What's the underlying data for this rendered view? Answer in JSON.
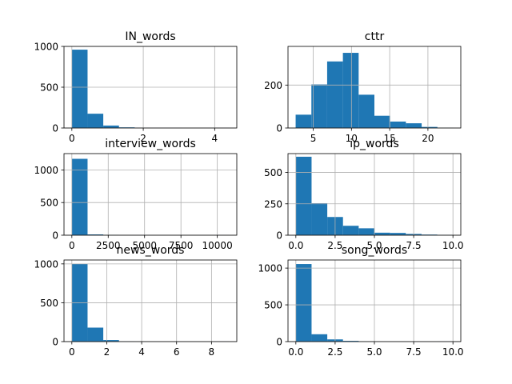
{
  "chart_data": [
    {
      "type": "bar",
      "title": "IN_words",
      "xlabel": "",
      "ylabel": "",
      "bar_color": "#1f77b4",
      "grid": true,
      "xlim": [
        -0.22,
        4.62
      ],
      "ylim": [
        0,
        1000
      ],
      "xticks": [
        0,
        2,
        4
      ],
      "xtick_labels": [
        "0",
        "2",
        "4"
      ],
      "yticks": [
        0,
        500,
        1000
      ],
      "ytick_labels": [
        "0",
        "500",
        "1000"
      ],
      "bin_edges": [
        0.0,
        0.44,
        0.88,
        1.32,
        1.76,
        2.2,
        2.64,
        3.08,
        3.52,
        3.96,
        4.4
      ],
      "values": [
        960,
        175,
        30,
        8,
        3,
        1,
        1,
        0,
        0,
        1
      ]
    },
    {
      "type": "bar",
      "title": "cttr",
      "xlabel": "",
      "ylabel": "",
      "bar_color": "#1f77b4",
      "grid": true,
      "xlim": [
        1.7,
        24.3
      ],
      "ylim": [
        0,
        380
      ],
      "xticks": [
        5,
        10,
        15,
        20
      ],
      "xtick_labels": [
        "5",
        "10",
        "15",
        "20"
      ],
      "yticks": [
        0,
        200
      ],
      "ytick_labels": [
        "0",
        "200"
      ],
      "bin_edges": [
        2.7,
        4.76,
        6.82,
        8.88,
        10.94,
        13.0,
        15.06,
        17.12,
        19.18,
        21.24,
        23.3
      ],
      "values": [
        62,
        203,
        310,
        350,
        155,
        57,
        30,
        22,
        5,
        1
      ]
    },
    {
      "type": "bar",
      "title": "interview_words",
      "xlabel": "",
      "ylabel": "",
      "bar_color": "#1f77b4",
      "grid": true,
      "xlim": [
        -540,
        11340
      ],
      "ylim": [
        0,
        1250
      ],
      "xticks": [
        0,
        2500,
        5000,
        7500,
        10000
      ],
      "xtick_labels": [
        "0",
        "2500",
        "5000",
        "7500",
        "10000"
      ],
      "yticks": [
        0,
        500,
        1000
      ],
      "ytick_labels": [
        "0",
        "500",
        "1000"
      ],
      "bin_edges": [
        0,
        1080,
        2160,
        3240,
        4320,
        5400,
        6480,
        7560,
        8640,
        9720,
        10800
      ],
      "values": [
        1170,
        12,
        6,
        2,
        1,
        0,
        0,
        0,
        0,
        1
      ]
    },
    {
      "type": "bar",
      "title": "ip_words",
      "xlabel": "",
      "ylabel": "",
      "bar_color": "#1f77b4",
      "grid": true,
      "xlim": [
        -0.5,
        10.5
      ],
      "ylim": [
        0,
        650
      ],
      "xticks": [
        0,
        2.5,
        5,
        7.5,
        10
      ],
      "xtick_labels": [
        "0.0",
        "2.5",
        "5.0",
        "7.5",
        "10.0"
      ],
      "yticks": [
        0,
        250,
        500
      ],
      "ytick_labels": [
        "0",
        "250",
        "500"
      ],
      "bin_edges": [
        0,
        1,
        2,
        3,
        4,
        5,
        6,
        7,
        8,
        9,
        10
      ],
      "values": [
        625,
        255,
        145,
        75,
        55,
        20,
        18,
        10,
        5,
        3
      ]
    },
    {
      "type": "bar",
      "title": "news_words",
      "xlabel": "",
      "ylabel": "",
      "bar_color": "#1f77b4",
      "grid": true,
      "xlim": [
        -0.45,
        9.45
      ],
      "ylim": [
        0,
        1050
      ],
      "xticks": [
        0,
        2,
        4,
        6,
        8
      ],
      "xtick_labels": [
        "0",
        "2",
        "4",
        "6",
        "8"
      ],
      "yticks": [
        0,
        500,
        1000
      ],
      "ytick_labels": [
        "0",
        "500",
        "1000"
      ],
      "bin_edges": [
        0,
        0.9,
        1.8,
        2.7,
        3.6,
        4.5,
        5.4,
        6.3,
        7.2,
        8.1,
        9.0
      ],
      "values": [
        1000,
        180,
        20,
        5,
        2,
        0,
        0,
        0,
        0,
        1
      ]
    },
    {
      "type": "bar",
      "title": "song_words",
      "xlabel": "",
      "ylabel": "",
      "bar_color": "#1f77b4",
      "grid": true,
      "xlim": [
        -0.5,
        10.5
      ],
      "ylim": [
        0,
        1110
      ],
      "xticks": [
        0,
        2.5,
        5,
        7.5,
        10
      ],
      "xtick_labels": [
        "0.0",
        "2.5",
        "5.0",
        "7.5",
        "10.0"
      ],
      "yticks": [
        0,
        500,
        1000
      ],
      "ytick_labels": [
        "0",
        "500",
        "1000"
      ],
      "bin_edges": [
        0,
        1,
        2,
        3,
        4,
        5,
        6,
        7,
        8,
        9,
        10
      ],
      "values": [
        1055,
        100,
        30,
        10,
        3,
        0,
        0,
        0,
        0,
        1
      ]
    }
  ]
}
